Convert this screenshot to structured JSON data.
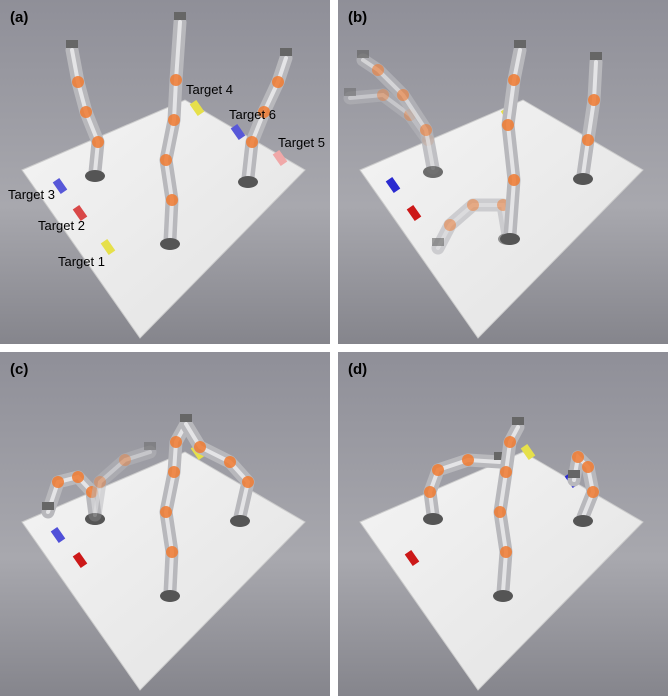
{
  "panels": [
    {
      "label": "(a)",
      "targets": [
        "Target 1",
        "Target 2",
        "Target 3",
        "Target 4",
        "Target 5",
        "Target 6"
      ]
    },
    {
      "label": "(b)"
    },
    {
      "label": "(c)"
    },
    {
      "label": "(d)"
    }
  ]
}
